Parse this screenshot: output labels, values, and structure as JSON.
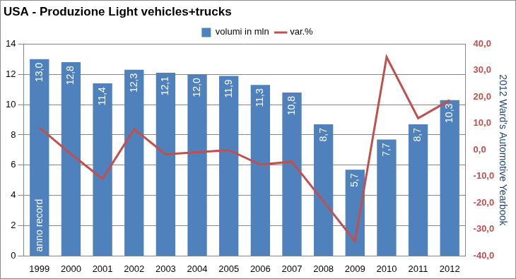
{
  "chart_data": {
    "type": "bar",
    "title": "USA - Produzione Light vehicles+trucks",
    "source": "2012 Ward's Automotive Yearbook",
    "categories": [
      "1999",
      "2000",
      "2001",
      "2002",
      "2003",
      "2004",
      "2005",
      "2006",
      "2007",
      "2008",
      "2009",
      "2010",
      "2011",
      "2012"
    ],
    "series": [
      {
        "name": "volumi in mln",
        "type": "bar",
        "color": "#4f81bd",
        "values": [
          13.0,
          12.8,
          11.4,
          12.3,
          12.1,
          12.0,
          11.9,
          11.3,
          10.8,
          8.7,
          5.7,
          7.7,
          8.7,
          10.3
        ],
        "value_labels": [
          "13,0",
          "12,8",
          "11,4",
          "12,3",
          "12,1",
          "12,0",
          "11,9",
          "11,3",
          "10,8",
          "8,7",
          "5,7",
          "7,7",
          "8,7",
          "10,3"
        ],
        "data_labels": true
      },
      {
        "name": "var.%",
        "type": "line",
        "color": "#c0504d",
        "axis": "y2",
        "values": [
          8.5,
          -1.5,
          -10.9,
          7.9,
          -1.6,
          -0.8,
          0.0,
          -5.5,
          -4.4,
          -19.4,
          -34.5,
          35.1,
          12.0,
          18.8
        ]
      }
    ],
    "annotations": [
      {
        "text": "anno record",
        "category": "1999"
      }
    ],
    "ylim": [
      0,
      14
    ],
    "yticks": [
      0,
      2,
      4,
      6,
      8,
      10,
      12,
      14
    ],
    "y2lim": [
      -40,
      40
    ],
    "y2ticks": [
      {
        "value": -40,
        "label": "-40,0"
      },
      {
        "value": -30,
        "label": "-30,0"
      },
      {
        "value": -20,
        "label": "-20,0"
      },
      {
        "value": -10,
        "label": "-10,0"
      },
      {
        "value": 0,
        "label": "0,0"
      },
      {
        "value": 10,
        "label": "10,0"
      },
      {
        "value": 20,
        "label": "20,0"
      },
      {
        "value": 30,
        "label": "30,0"
      },
      {
        "value": 40,
        "label": "40,0"
      }
    ],
    "grid": true,
    "legend": "top"
  }
}
